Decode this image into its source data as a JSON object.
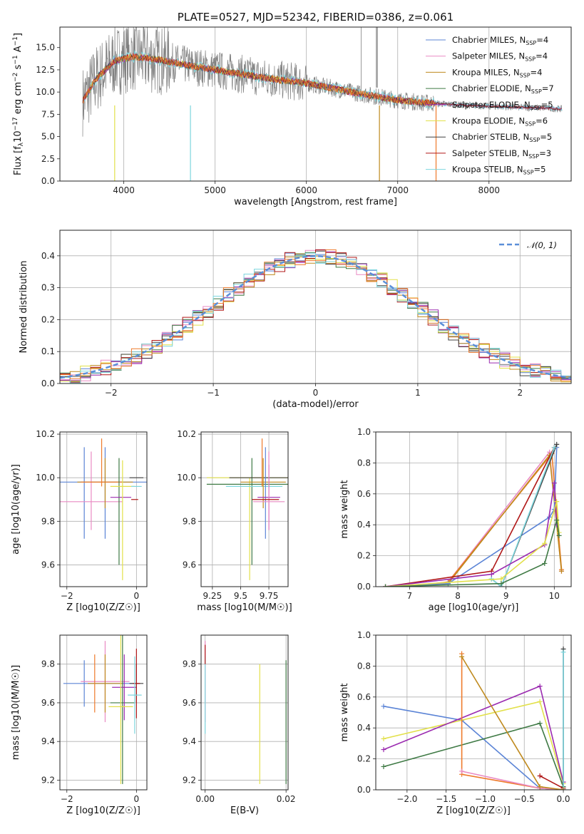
{
  "title": "PLATE=0527, MJD=52342, FIBERID=0386, z=0.061",
  "colors": {
    "Chabrier MILES": "#5b84d6",
    "Salpeter MILES": "#e98ac3",
    "Kroupa MILES": "#bf8a1e",
    "Chabrier ELODIE": "#3f7a45",
    "Salpeter ELODIE": "#9b2bb0",
    "Kroupa ELODIE": "#e2e04a",
    "Chabrier STELIB": "#404040",
    "Salpeter STELIB": "#b01818",
    "Kroupa STELIB": "#7dd6de",
    "orange": "#ee7a2b",
    "data": "#808080",
    "gauss": "#5b8fd8",
    "lightgreen": "#b8e04a"
  },
  "chart_data": [
    {
      "type": "line",
      "id": "spectrum",
      "title": "PLATE=0527, MJD=52342, FIBERID=0386, z=0.061",
      "xlabel": "wavelength [Angstrom, rest frame]",
      "ylabel": "Flux [f_λ 10^{-17} erg cm^{-2} s^{-1} A^{-1}]",
      "xlim": [
        3300,
        8900
      ],
      "ylim": [
        0,
        17.3
      ],
      "xticks": [
        4000,
        5000,
        6000,
        7000,
        8000
      ],
      "yticks": [
        0.0,
        2.5,
        5.0,
        7.5,
        10.0,
        12.5,
        15.0
      ],
      "ytick_labels": [
        "0.0",
        "2.5",
        "5.0",
        "7.5",
        "10.0",
        "12.5",
        "15.0"
      ],
      "legend_position": "upper right",
      "series": [
        {
          "name": "Chabrier MILES, N_SSP=4"
        },
        {
          "name": "Salpeter MILES, N_SSP=4"
        },
        {
          "name": "Kroupa MILES, N_SSP=4"
        },
        {
          "name": "Chabrier ELODIE, N_SSP=7"
        },
        {
          "name": "Salpeter ELODIE, N_SSP=5"
        },
        {
          "name": "Kroupa ELODIE, N_SSP=6"
        },
        {
          "name": "Chabrier STELIB, N_SSP=5"
        },
        {
          "name": "Salpeter STELIB, N_SSP=3"
        },
        {
          "name": "Kroupa STELIB, N_SSP=5"
        }
      ],
      "continuum": {
        "x": [
          3550,
          3700,
          3900,
          4100,
          4400,
          4700,
          5000,
          5300,
          5600,
          6000,
          6300,
          6600,
          7000,
          7300,
          7600,
          8000,
          8300,
          8600,
          8800
        ],
        "y": [
          9.0,
          11.5,
          13.5,
          14.0,
          13.6,
          13.0,
          12.5,
          12.0,
          11.5,
          11.0,
          10.4,
          9.8,
          9.1,
          8.8,
          8.6,
          8.4,
          8.3,
          8.2,
          8.1
        ]
      }
    },
    {
      "type": "line",
      "id": "residual-hist",
      "xlabel": "(data-model)/error",
      "ylabel": "Normed distribution",
      "xlim": [
        -2.5,
        2.5
      ],
      "ylim": [
        0,
        0.48
      ],
      "xticks": [
        -2,
        -1,
        0,
        1,
        2
      ],
      "yticks": [
        0.0,
        0.1,
        0.2,
        0.3,
        0.4
      ],
      "ytick_labels": [
        "0.0",
        "0.1",
        "0.2",
        "0.3",
        "0.4"
      ],
      "legend": "𝒩(0, 1)",
      "gaussian": {
        "mu": 0,
        "sigma": 1
      }
    },
    {
      "type": "scatter",
      "id": "age-vs-Z",
      "xlabel": "Z [log10(Z/Z☉)]",
      "ylabel": "age [log10(age/yr)]",
      "xlim": [
        -2.2,
        0.3
      ],
      "ylim": [
        9.5,
        10.21
      ],
      "xticks": [
        -2,
        0
      ],
      "yticks": [
        9.6,
        9.8,
        10.0,
        10.2
      ],
      "points": [
        {
          "model": "Chabrier MILES",
          "x": -0.9,
          "xerr": 1.3,
          "y": 9.98,
          "yerr": 0.0,
          "yerr_lo": 0.26,
          "yerr_hi": 0.16
        },
        {
          "model": "Chabrier MILES",
          "x": -1.5,
          "xerr": 0.0,
          "y": 9.98,
          "yerr_lo": 0.26,
          "yerr_hi": 0.16
        },
        {
          "model": "Salpeter MILES",
          "x": -1.3,
          "xerr": 0.9,
          "y": 9.89,
          "yerr_lo": 0.13,
          "yerr_hi": 0.23
        },
        {
          "model": "Kroupa MILES",
          "x": -0.9,
          "xerr": 0.8,
          "y": 9.98,
          "yerr_lo": 0.12,
          "yerr_hi": 0.11
        },
        {
          "model": "orange",
          "x": -1.0,
          "xerr": 0.6,
          "y": 9.98,
          "yerr_lo": 0.02,
          "yerr_hi": 0.2
        },
        {
          "model": "Chabrier ELODIE",
          "x": -0.5,
          "xerr": 0.0,
          "y": 9.97,
          "yerr_lo": 0.37,
          "yerr_hi": 0.12
        },
        {
          "model": "Salpeter ELODIE",
          "x": -0.45,
          "xerr": 0.3,
          "y": 9.91,
          "yerr_lo": 0.0,
          "yerr_hi": 0.0
        },
        {
          "model": "Kroupa ELODIE",
          "x": -0.4,
          "xerr": 0.35,
          "y": 9.96,
          "yerr_lo": 0.43,
          "yerr_hi": 0.12
        },
        {
          "model": "Chabrier STELIB",
          "x": 0.0,
          "xerr": 0.2,
          "y": 10.0,
          "yerr_lo": 0.0,
          "yerr_hi": 0.0
        },
        {
          "model": "Salpeter STELIB",
          "x": -0.05,
          "xerr": 0.1,
          "y": 9.9,
          "yerr_lo": 0.0,
          "yerr_hi": 0.0
        },
        {
          "model": "Kroupa STELIB",
          "x": 0.0,
          "xerr": 0.15,
          "y": 9.96,
          "yerr_lo": 0.0,
          "yerr_hi": 0.0
        },
        {
          "model": "Chabrier MILES",
          "x": -0.9,
          "xerr": 0.0,
          "y": 9.98,
          "yerr_lo": 0.0,
          "yerr_hi": 0.0
        }
      ]
    },
    {
      "type": "scatter",
      "id": "age-vs-mass",
      "xlabel": "mass [log10(M/M☉)]",
      "ylabel": "",
      "xlim": [
        9.15,
        9.92
      ],
      "ylim": [
        9.5,
        10.21
      ],
      "xticks": [
        9.25,
        9.5,
        9.75
      ],
      "yticks": [
        9.6,
        9.8,
        10.0,
        10.2
      ],
      "points": [
        {
          "model": "Kroupa ELODIE",
          "x": 9.58,
          "xerr": 0.38,
          "y": 10.0,
          "yerr_lo": 0.47,
          "yerr_hi": 0.0
        },
        {
          "model": "Chabrier ELODIE",
          "x": 9.6,
          "xerr": 0.4,
          "y": 9.97,
          "yerr_lo": 0.37,
          "yerr_hi": 0.12
        },
        {
          "model": "Chabrier STELIB",
          "x": 9.7,
          "xerr": 0.3,
          "y": 10.0,
          "yerr_lo": 0.0,
          "yerr_hi": 0.0
        },
        {
          "model": "Kroupa STELIB",
          "x": 9.62,
          "xerr": 0.25,
          "y": 9.96,
          "yerr_lo": 0.0,
          "yerr_hi": 0.0
        },
        {
          "model": "Kroupa MILES",
          "x": 9.7,
          "xerr": 0.2,
          "y": 9.98,
          "yerr_lo": 0.12,
          "yerr_hi": 0.11
        },
        {
          "model": "Chabrier MILES",
          "x": 9.72,
          "xerr": 0.0,
          "y": 9.98,
          "yerr_lo": 0.26,
          "yerr_hi": 0.16
        },
        {
          "model": "orange",
          "x": 9.69,
          "xerr": 0.0,
          "y": 9.98,
          "yerr_lo": 0.02,
          "yerr_hi": 0.2
        },
        {
          "model": "Salpeter ELODIE",
          "x": 9.75,
          "xerr": 0.1,
          "y": 9.91,
          "yerr_lo": 0.15,
          "yerr_hi": 0.15
        },
        {
          "model": "Salpeter MILES",
          "x": 9.75,
          "xerr": 0.14,
          "y": 9.89,
          "yerr_lo": 0.13,
          "yerr_hi": 0.23
        },
        {
          "model": "Salpeter STELIB",
          "x": 9.72,
          "xerr": 0.12,
          "y": 9.9,
          "yerr_lo": 0.0,
          "yerr_hi": 0.0
        }
      ]
    },
    {
      "type": "line",
      "id": "massweight-vs-age",
      "xlabel": "age [log10(age/yr)]",
      "ylabel": "mass weight",
      "xlim": [
        6.3,
        10.35
      ],
      "ylim": [
        0,
        1.0
      ],
      "xticks": [
        7,
        8,
        9,
        10
      ],
      "yticks": [
        0.0,
        0.2,
        0.4,
        0.6,
        0.8,
        1.0
      ],
      "series": [
        {
          "model": "Salpeter MILES",
          "x": [
            6.8,
            7.8,
            9.9,
            10.15
          ],
          "y": [
            0.0,
            0.03,
            0.87,
            0.1
          ]
        },
        {
          "model": "orange",
          "x": [
            6.9,
            7.8,
            9.95,
            10.15
          ],
          "y": [
            0.0,
            0.03,
            0.86,
            0.11
          ]
        },
        {
          "model": "Kroupa MILES",
          "x": [
            6.8,
            7.8,
            9.9,
            10.15
          ],
          "y": [
            0.0,
            0.02,
            0.85,
            0.1
          ]
        },
        {
          "model": "Chabrier MILES",
          "x": [
            6.5,
            7.8,
            9.9,
            10.0,
            10.05
          ],
          "y": [
            0.0,
            0.02,
            0.45,
            0.5,
            0.9
          ]
        },
        {
          "model": "Salpeter STELIB",
          "x": [
            6.5,
            8.7,
            10.0
          ],
          "y": [
            0.0,
            0.1,
            0.9
          ]
        },
        {
          "model": "Chabrier STELIB",
          "x": [
            8.7,
            8.9,
            10.05
          ],
          "y": [
            0.05,
            0.0,
            0.92
          ]
        },
        {
          "model": "Kroupa STELIB",
          "x": [
            8.7,
            8.9,
            10.0
          ],
          "y": [
            0.05,
            0.0,
            0.9
          ]
        },
        {
          "model": "Salpeter ELODIE",
          "x": [
            6.5,
            8.7,
            9.8,
            10.0,
            10.05
          ],
          "y": [
            0.0,
            0.08,
            0.27,
            0.67,
            0.4
          ]
        },
        {
          "model": "Kroupa ELODIE",
          "x": [
            6.5,
            8.9,
            9.8,
            10.05,
            10.1
          ],
          "y": [
            0.0,
            0.05,
            0.28,
            0.55,
            0.35
          ]
        },
        {
          "model": "Chabrier ELODIE",
          "x": [
            6.5,
            8.9,
            9.8,
            10.05,
            10.1
          ],
          "y": [
            0.0,
            0.02,
            0.15,
            0.43,
            0.33
          ]
        }
      ]
    },
    {
      "type": "scatter",
      "id": "mass-vs-Z",
      "xlabel": "Z [log10(Z/Z☉)]",
      "ylabel": "mass [log10(M/M☉)]",
      "xlim": [
        -2.2,
        0.3
      ],
      "ylim": [
        9.15,
        9.95
      ],
      "xticks": [
        -2,
        0
      ],
      "yticks": [
        9.2,
        9.4,
        9.6,
        9.8
      ],
      "points": [
        {
          "model": "Chabrier MILES",
          "x": -1.0,
          "xerr": 1.1,
          "y": 9.7,
          "yerr": 0.0
        },
        {
          "model": "Chabrier MILES",
          "x": -1.5,
          "xerr": 0.0,
          "y": 9.7,
          "yerr": 0.12
        },
        {
          "model": "Salpeter MILES",
          "x": -0.9,
          "xerr": 0.7,
          "y": 9.71,
          "yerr": 0.21
        },
        {
          "model": "Kroupa MILES",
          "x": -0.9,
          "xerr": 0.5,
          "y": 9.7,
          "yerr": 0.15
        },
        {
          "model": "orange",
          "x": -1.2,
          "xerr": 0.0,
          "y": 9.7,
          "yerr": 0.15
        },
        {
          "model": "Chabrier ELODIE",
          "x": -0.4,
          "xerr": 0.35,
          "y": 9.6,
          "yerr": 0.42
        },
        {
          "model": "Salpeter ELODIE",
          "x": -0.35,
          "xerr": 0.35,
          "y": 9.68,
          "yerr": 0.17
        },
        {
          "model": "Kroupa ELODIE",
          "x": -0.45,
          "xerr": 0.35,
          "y": 9.58,
          "yerr": 0.4
        },
        {
          "model": "Chabrier STELIB",
          "x": 0.0,
          "xerr": 0.2,
          "y": 9.7,
          "yerr": 0.1
        },
        {
          "model": "Salpeter STELIB",
          "x": 0.0,
          "xerr": 0.1,
          "y": 9.7,
          "yerr": 0.18
        },
        {
          "model": "Kroupa STELIB",
          "x": -0.05,
          "xerr": 0.2,
          "y": 9.64,
          "yerr": 0.2
        }
      ]
    },
    {
      "type": "scatter",
      "id": "mass-vs-ebv",
      "xlabel": "E(B-V)",
      "ylabel": "",
      "xlim": [
        -0.001,
        0.0205
      ],
      "ylim": [
        9.15,
        9.95
      ],
      "xticks": [
        0.0,
        0.02
      ],
      "xtick_labels": [
        "0.00",
        "0.02"
      ],
      "yticks": [
        9.2,
        9.4,
        9.6,
        9.8
      ],
      "points": [
        {
          "model": "Salpeter MILES",
          "x": 0.0,
          "y": 9.71,
          "yerr": 0.21
        },
        {
          "model": "Kroupa STELIB",
          "x": 0.0,
          "y": 9.64,
          "yerr": 0.2
        },
        {
          "model": "Salpeter STELIB",
          "x": 0.0,
          "y": 9.85,
          "yerr": 0.05
        },
        {
          "model": "Kroupa ELODIE",
          "x": 0.0135,
          "y": 9.49,
          "yerr": 0.31
        },
        {
          "model": "Chabrier ELODIE",
          "x": 0.02,
          "y": 9.5,
          "yerr": 0.32
        }
      ]
    },
    {
      "type": "line",
      "id": "massweight-vs-Z",
      "xlabel": "Z [log10(Z/Z☉)]",
      "ylabel": "mass weight",
      "xlim": [
        -2.4,
        0.1
      ],
      "ylim": [
        0,
        1.0
      ],
      "xticks": [
        -2.0,
        -1.5,
        -1.0,
        -0.5,
        0.0
      ],
      "xtick_labels": [
        "−2.0",
        "−1.5",
        "−1.0",
        "−0.5",
        "0.0"
      ],
      "yticks": [
        0.0,
        0.2,
        0.4,
        0.6,
        0.8,
        1.0
      ],
      "series": [
        {
          "model": "Chabrier MILES",
          "x": [
            -2.3,
            -1.3,
            -0.3,
            0.0
          ],
          "y": [
            0.54,
            0.45,
            0.01,
            0.0
          ]
        },
        {
          "model": "Kroupa ELODIE",
          "x": [
            -2.3,
            -0.3,
            0.0
          ],
          "y": [
            0.33,
            0.57,
            0.04
          ]
        },
        {
          "model": "Salpeter ELODIE",
          "x": [
            -2.3,
            -0.3,
            0.0
          ],
          "y": [
            0.26,
            0.67,
            0.05
          ]
        },
        {
          "model": "Chabrier ELODIE",
          "x": [
            -2.3,
            -0.3,
            0.0
          ],
          "y": [
            0.15,
            0.43,
            0.02
          ]
        },
        {
          "model": "orange",
          "x": [
            -1.3,
            -1.3,
            -0.3,
            0.0
          ],
          "y": [
            0.88,
            0.1,
            0.01,
            0.0
          ]
        },
        {
          "model": "Salpeter MILES",
          "x": [
            -1.3,
            -0.3,
            0.0
          ],
          "y": [
            0.12,
            0.01,
            0.0
          ]
        },
        {
          "model": "Salpeter STELIB",
          "x": [
            -0.3,
            0.0
          ],
          "y": [
            0.09,
            0.01
          ]
        },
        {
          "model": "Chabrier STELIB",
          "x": [
            0.0,
            0.0
          ],
          "y": [
            0.91,
            0.0
          ]
        },
        {
          "model": "Kroupa STELIB",
          "x": [
            0.0,
            0.0
          ],
          "y": [
            0.89,
            0.0
          ]
        },
        {
          "model": "Kroupa MILES",
          "x": [
            -1.3,
            -0.3,
            0.0
          ],
          "y": [
            0.86,
            0.02,
            0.0
          ]
        }
      ]
    }
  ]
}
